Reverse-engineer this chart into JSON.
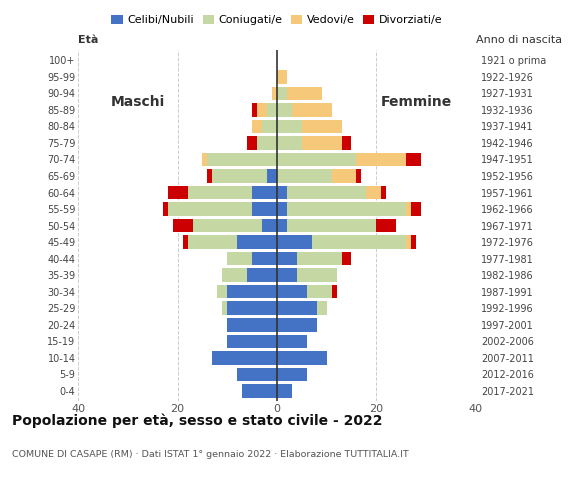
{
  "age_groups": [
    "0-4",
    "5-9",
    "10-14",
    "15-19",
    "20-24",
    "25-29",
    "30-34",
    "35-39",
    "40-44",
    "45-49",
    "50-54",
    "55-59",
    "60-64",
    "65-69",
    "70-74",
    "75-79",
    "80-84",
    "85-89",
    "90-94",
    "95-99",
    "100+"
  ],
  "birth_years": [
    "2017-2021",
    "2012-2016",
    "2007-2011",
    "2002-2006",
    "1997-2001",
    "1992-1996",
    "1987-1991",
    "1982-1986",
    "1977-1981",
    "1972-1976",
    "1967-1971",
    "1962-1966",
    "1957-1961",
    "1952-1956",
    "1947-1951",
    "1942-1946",
    "1937-1941",
    "1932-1936",
    "1927-1931",
    "1922-1926",
    "1921 o prima"
  ],
  "colors": {
    "celibi": "#4472C4",
    "coniugati": "#c5d8a4",
    "vedovi": "#f5c87a",
    "divorziati": "#CC0000"
  },
  "males": {
    "celibi": [
      7,
      8,
      13,
      10,
      10,
      10,
      10,
      6,
      5,
      8,
      3,
      5,
      5,
      2,
      0,
      0,
      0,
      0,
      0,
      0,
      0
    ],
    "coniugati": [
      0,
      0,
      0,
      0,
      0,
      1,
      2,
      5,
      5,
      10,
      14,
      17,
      13,
      11,
      14,
      4,
      3,
      2,
      0,
      0,
      0
    ],
    "vedovi": [
      0,
      0,
      0,
      0,
      0,
      0,
      0,
      0,
      0,
      0,
      0,
      0,
      0,
      0,
      1,
      0,
      2,
      2,
      1,
      0,
      0
    ],
    "divorziati": [
      0,
      0,
      0,
      0,
      0,
      0,
      0,
      0,
      0,
      1,
      4,
      1,
      4,
      1,
      0,
      2,
      0,
      1,
      0,
      0,
      0
    ]
  },
  "females": {
    "celibi": [
      3,
      6,
      10,
      6,
      8,
      8,
      6,
      4,
      4,
      7,
      2,
      2,
      2,
      0,
      0,
      0,
      0,
      0,
      0,
      0,
      0
    ],
    "coniugati": [
      0,
      0,
      0,
      0,
      0,
      2,
      5,
      8,
      9,
      19,
      18,
      24,
      16,
      11,
      16,
      5,
      5,
      3,
      2,
      0,
      0
    ],
    "vedovi": [
      0,
      0,
      0,
      0,
      0,
      0,
      0,
      0,
      0,
      1,
      0,
      1,
      3,
      5,
      10,
      8,
      8,
      8,
      7,
      2,
      0
    ],
    "divorziati": [
      0,
      0,
      0,
      0,
      0,
      0,
      1,
      0,
      2,
      1,
      4,
      2,
      1,
      1,
      3,
      2,
      0,
      0,
      0,
      0,
      0
    ]
  },
  "title": "Popolazione per età, sesso e stato civile - 2022",
  "subtitle": "COMUNE DI CASAPE (RM) · Dati ISTAT 1° gennaio 2022 · Elaborazione TUTTITALIA.IT",
  "ylabel_left": "Età",
  "ylabel_right": "Anno di nascita",
  "label_maschi": "Maschi",
  "label_femmine": "Femmine",
  "legend_labels": [
    "Celibi/Nubili",
    "Coniugati/e",
    "Vedovi/e",
    "Divorziati/e"
  ],
  "xlim": 40,
  "background_color": "#ffffff",
  "grid_color": "#cccccc"
}
